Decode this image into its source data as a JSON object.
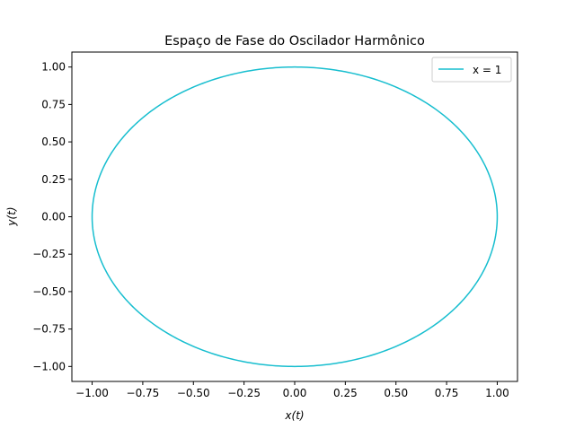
{
  "chart_data": {
    "type": "line",
    "title": "Espaço de Fase do Oscilador Harmônico",
    "xlabel": "x(t)",
    "ylabel": "y(t)",
    "xlim": [
      -1.1,
      1.1
    ],
    "ylim": [
      -1.1,
      1.1
    ],
    "xticks": [
      "−1.00",
      "−0.75",
      "−0.50",
      "−0.25",
      "0.00",
      "0.25",
      "0.50",
      "0.75",
      "1.00"
    ],
    "yticks": [
      "−1.00",
      "−0.75",
      "−0.50",
      "−0.25",
      "0.00",
      "0.25",
      "0.50",
      "0.75",
      "1.00"
    ],
    "grid": false,
    "legend_position": "top-right",
    "series": [
      {
        "name": "x = 1",
        "color": "#17becf",
        "curve": "circle",
        "center": [
          0,
          0
        ],
        "radius": 1
      }
    ]
  }
}
